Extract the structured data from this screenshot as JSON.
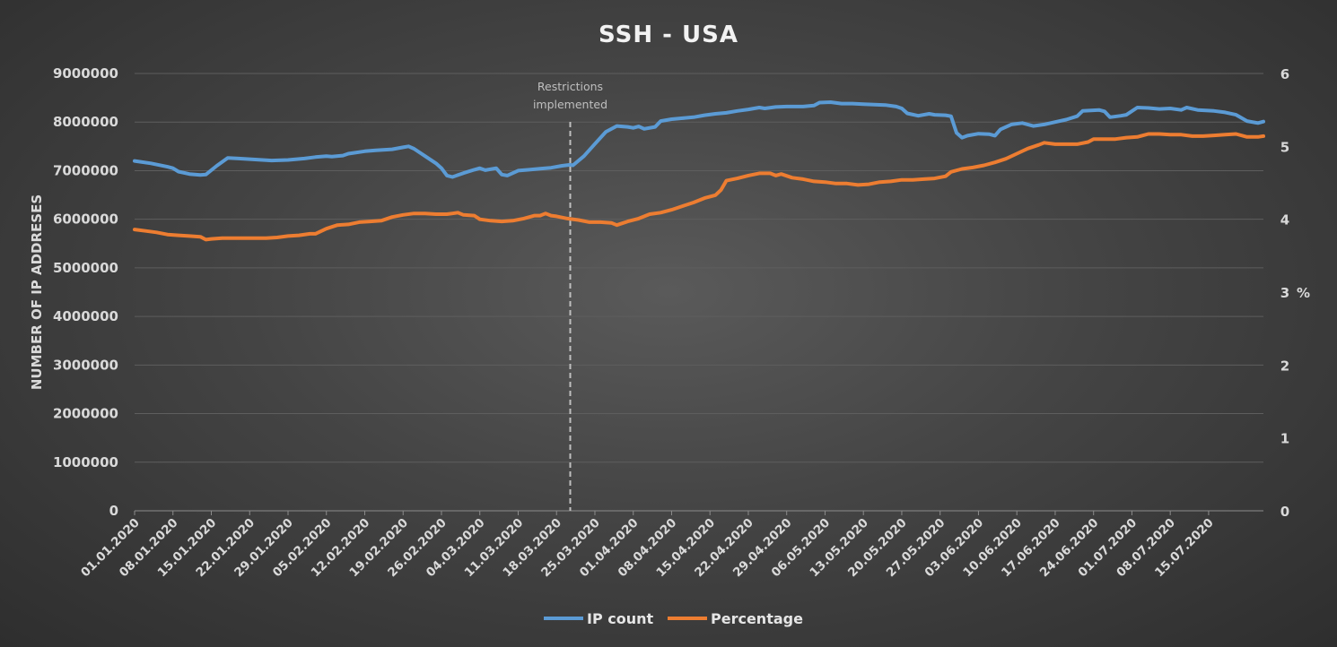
{
  "chart_data": {
    "type": "line",
    "title": "SSH - USA",
    "ylabel": "NUMBER OF IP ADDRESES",
    "y2label": "%",
    "ylim": [
      0,
      9000000
    ],
    "y2lim": [
      0,
      6
    ],
    "yticks": [
      "0",
      "1000000",
      "2000000",
      "3000000",
      "4000000",
      "5000000",
      "6000000",
      "7000000",
      "8000000",
      "9000000"
    ],
    "y2ticks": [
      "0",
      "1",
      "2",
      "3",
      "4",
      "5",
      "6"
    ],
    "xlabels": [
      "01.01.2020",
      "08.01.2020",
      "15.01.2020",
      "22.01.2020",
      "29.01.2020",
      "05.02.2020",
      "12.02.2020",
      "19.02.2020",
      "26.02.2020",
      "04.03.2020",
      "11.03.2020",
      "18.03.2020",
      "25.03.2020",
      "01.04.2020",
      "08.04.2020",
      "15.04.2020",
      "22.04.2020",
      "29.04.2020",
      "06.05.2020",
      "13.05.2020",
      "20.05.2020",
      "27.05.2020",
      "03.06.2020",
      "10.06.2020",
      "17.06.2020",
      "24.06.2020",
      "01.07.2020",
      "08.07.2020",
      "15.07.2020"
    ],
    "x_days_total": 206,
    "annotation": {
      "line1": "Restrictions",
      "line2": "implemented",
      "day": 79.5
    },
    "legend": {
      "position": "bottom"
    },
    "series": [
      {
        "name": "IP count",
        "axis": "left",
        "color": "#5b9bd5",
        "points": [
          [
            0,
            7200000
          ],
          [
            3,
            7150000
          ],
          [
            6,
            7080000
          ],
          [
            7,
            7050000
          ],
          [
            8,
            6980000
          ],
          [
            10,
            6930000
          ],
          [
            12,
            6910000
          ],
          [
            13,
            6920000
          ],
          [
            15,
            7100000
          ],
          [
            17,
            7260000
          ],
          [
            19,
            7250000
          ],
          [
            22,
            7230000
          ],
          [
            25,
            7210000
          ],
          [
            28,
            7220000
          ],
          [
            31,
            7250000
          ],
          [
            33,
            7280000
          ],
          [
            35,
            7300000
          ],
          [
            36,
            7290000
          ],
          [
            38,
            7310000
          ],
          [
            39,
            7350000
          ],
          [
            42,
            7400000
          ],
          [
            44,
            7420000
          ],
          [
            47,
            7440000
          ],
          [
            49,
            7480000
          ],
          [
            50,
            7500000
          ],
          [
            51,
            7450000
          ],
          [
            53,
            7300000
          ],
          [
            55,
            7150000
          ],
          [
            56,
            7050000
          ],
          [
            57,
            6900000
          ],
          [
            58,
            6870000
          ],
          [
            60,
            6950000
          ],
          [
            62,
            7020000
          ],
          [
            63,
            7050000
          ],
          [
            64,
            7010000
          ],
          [
            66,
            7050000
          ],
          [
            67,
            6920000
          ],
          [
            68,
            6900000
          ],
          [
            69,
            6950000
          ],
          [
            70,
            7000000
          ],
          [
            72,
            7020000
          ],
          [
            74,
            7040000
          ],
          [
            76,
            7060000
          ],
          [
            78,
            7100000
          ],
          [
            79.5,
            7120000
          ],
          [
            80,
            7110000
          ],
          [
            82,
            7300000
          ],
          [
            84,
            7550000
          ],
          [
            86,
            7800000
          ],
          [
            88,
            7920000
          ],
          [
            90,
            7900000
          ],
          [
            91,
            7880000
          ],
          [
            92,
            7910000
          ],
          [
            93,
            7860000
          ],
          [
            95,
            7900000
          ],
          [
            96,
            8020000
          ],
          [
            98,
            8060000
          ],
          [
            100,
            8080000
          ],
          [
            102,
            8100000
          ],
          [
            104,
            8140000
          ],
          [
            106,
            8170000
          ],
          [
            108,
            8190000
          ],
          [
            110,
            8230000
          ],
          [
            112,
            8260000
          ],
          [
            114,
            8300000
          ],
          [
            115,
            8280000
          ],
          [
            117,
            8310000
          ],
          [
            119,
            8320000
          ],
          [
            122,
            8320000
          ],
          [
            124,
            8340000
          ],
          [
            125,
            8400000
          ],
          [
            127,
            8410000
          ],
          [
            129,
            8380000
          ],
          [
            131,
            8380000
          ],
          [
            133,
            8370000
          ],
          [
            135,
            8360000
          ],
          [
            137,
            8350000
          ],
          [
            139,
            8320000
          ],
          [
            140,
            8280000
          ],
          [
            141,
            8180000
          ],
          [
            143,
            8130000
          ],
          [
            145,
            8170000
          ],
          [
            146,
            8150000
          ],
          [
            148,
            8140000
          ],
          [
            149,
            8120000
          ],
          [
            150,
            7780000
          ],
          [
            151,
            7680000
          ],
          [
            152,
            7720000
          ],
          [
            154,
            7760000
          ],
          [
            156,
            7750000
          ],
          [
            157,
            7720000
          ],
          [
            158,
            7850000
          ],
          [
            160,
            7950000
          ],
          [
            162,
            7980000
          ],
          [
            164,
            7920000
          ],
          [
            166,
            7950000
          ],
          [
            168,
            8000000
          ],
          [
            170,
            8050000
          ],
          [
            172,
            8120000
          ],
          [
            173,
            8230000
          ],
          [
            176,
            8250000
          ],
          [
            177,
            8220000
          ],
          [
            178,
            8100000
          ],
          [
            180,
            8130000
          ],
          [
            181,
            8150000
          ],
          [
            183,
            8300000
          ],
          [
            185,
            8290000
          ],
          [
            187,
            8270000
          ],
          [
            189,
            8280000
          ],
          [
            191,
            8250000
          ],
          [
            192,
            8300000
          ],
          [
            194,
            8250000
          ],
          [
            197,
            8230000
          ],
          [
            199,
            8200000
          ],
          [
            201,
            8150000
          ],
          [
            203,
            8020000
          ],
          [
            205,
            7980000
          ],
          [
            206,
            8010000
          ]
        ]
      },
      {
        "name": "Percentage",
        "axis": "right",
        "color": "#ed7d31",
        "points": [
          [
            0,
            3.86
          ],
          [
            2,
            3.84
          ],
          [
            4,
            3.82
          ],
          [
            6,
            3.79
          ],
          [
            8,
            3.78
          ],
          [
            10,
            3.77
          ],
          [
            12,
            3.76
          ],
          [
            13,
            3.72
          ],
          [
            14,
            3.73
          ],
          [
            16,
            3.74
          ],
          [
            20,
            3.74
          ],
          [
            24,
            3.74
          ],
          [
            26,
            3.75
          ],
          [
            28,
            3.77
          ],
          [
            30,
            3.78
          ],
          [
            32,
            3.8
          ],
          [
            33,
            3.8
          ],
          [
            35,
            3.87
          ],
          [
            37,
            3.92
          ],
          [
            39,
            3.93
          ],
          [
            41,
            3.96
          ],
          [
            43,
            3.97
          ],
          [
            45,
            3.98
          ],
          [
            47,
            4.03
          ],
          [
            49,
            4.06
          ],
          [
            51,
            4.08
          ],
          [
            53,
            4.08
          ],
          [
            55,
            4.07
          ],
          [
            57,
            4.07
          ],
          [
            58,
            4.08
          ],
          [
            59,
            4.09
          ],
          [
            60,
            4.06
          ],
          [
            62,
            4.05
          ],
          [
            63,
            4.0
          ],
          [
            65,
            3.98
          ],
          [
            67,
            3.97
          ],
          [
            69,
            3.98
          ],
          [
            71,
            4.01
          ],
          [
            73,
            4.05
          ],
          [
            74,
            4.05
          ],
          [
            75,
            4.08
          ],
          [
            76,
            4.05
          ],
          [
            77,
            4.04
          ],
          [
            79,
            4.01
          ],
          [
            81,
            3.99
          ],
          [
            83,
            3.96
          ],
          [
            85,
            3.96
          ],
          [
            87,
            3.95
          ],
          [
            88,
            3.92
          ],
          [
            90,
            3.97
          ],
          [
            92,
            4.01
          ],
          [
            94,
            4.07
          ],
          [
            96,
            4.09
          ],
          [
            98,
            4.13
          ],
          [
            100,
            4.18
          ],
          [
            102,
            4.23
          ],
          [
            104,
            4.29
          ],
          [
            106,
            4.33
          ],
          [
            107,
            4.4
          ],
          [
            108,
            4.53
          ],
          [
            110,
            4.56
          ],
          [
            112,
            4.6
          ],
          [
            114,
            4.63
          ],
          [
            116,
            4.63
          ],
          [
            117,
            4.6
          ],
          [
            118,
            4.62
          ],
          [
            120,
            4.57
          ],
          [
            122,
            4.55
          ],
          [
            124,
            4.52
          ],
          [
            126,
            4.51
          ],
          [
            128,
            4.49
          ],
          [
            130,
            4.49
          ],
          [
            132,
            4.47
          ],
          [
            134,
            4.48
          ],
          [
            136,
            4.51
          ],
          [
            138,
            4.52
          ],
          [
            140,
            4.54
          ],
          [
            142,
            4.54
          ],
          [
            144,
            4.55
          ],
          [
            146,
            4.56
          ],
          [
            148,
            4.59
          ],
          [
            149,
            4.65
          ],
          [
            151,
            4.69
          ],
          [
            153,
            4.71
          ],
          [
            155,
            4.74
          ],
          [
            157,
            4.78
          ],
          [
            159,
            4.83
          ],
          [
            161,
            4.9
          ],
          [
            163,
            4.97
          ],
          [
            165,
            5.02
          ],
          [
            166,
            5.05
          ],
          [
            168,
            5.03
          ],
          [
            170,
            5.03
          ],
          [
            172,
            5.03
          ],
          [
            174,
            5.06
          ],
          [
            175,
            5.1
          ],
          [
            177,
            5.1
          ],
          [
            179,
            5.1
          ],
          [
            181,
            5.12
          ],
          [
            183,
            5.13
          ],
          [
            185,
            5.17
          ],
          [
            187,
            5.17
          ],
          [
            189,
            5.16
          ],
          [
            191,
            5.16
          ],
          [
            193,
            5.14
          ],
          [
            195,
            5.14
          ],
          [
            197,
            5.15
          ],
          [
            199,
            5.16
          ],
          [
            201,
            5.17
          ],
          [
            203,
            5.13
          ],
          [
            205,
            5.13
          ],
          [
            206,
            5.14
          ]
        ]
      }
    ]
  }
}
